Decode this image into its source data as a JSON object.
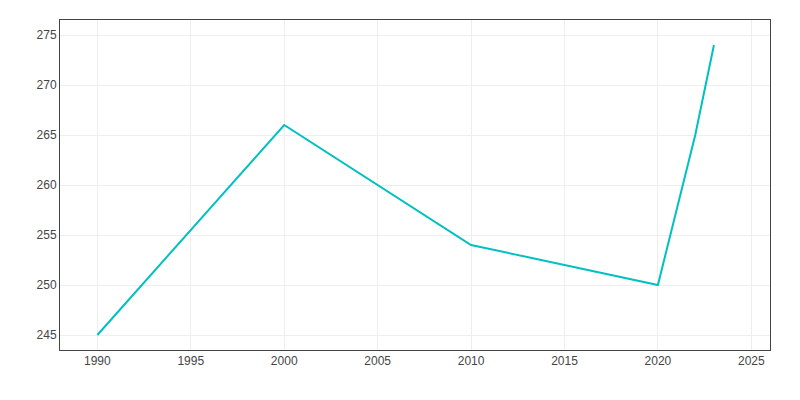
{
  "chart_data": {
    "type": "line",
    "x": [
      1990,
      2000,
      2010,
      2020,
      2022,
      2023
    ],
    "values": [
      245,
      266,
      254,
      250,
      265,
      274
    ],
    "color": "#00C0C0",
    "xlim": [
      1988,
      2026
    ],
    "xticks": [
      1990,
      1995,
      2000,
      2005,
      2010,
      2015,
      2020,
      2025
    ],
    "ylim": [
      243.5,
      276.5
    ],
    "yticks": [
      245,
      250,
      255,
      260,
      265,
      270,
      275
    ],
    "grid": true
  }
}
